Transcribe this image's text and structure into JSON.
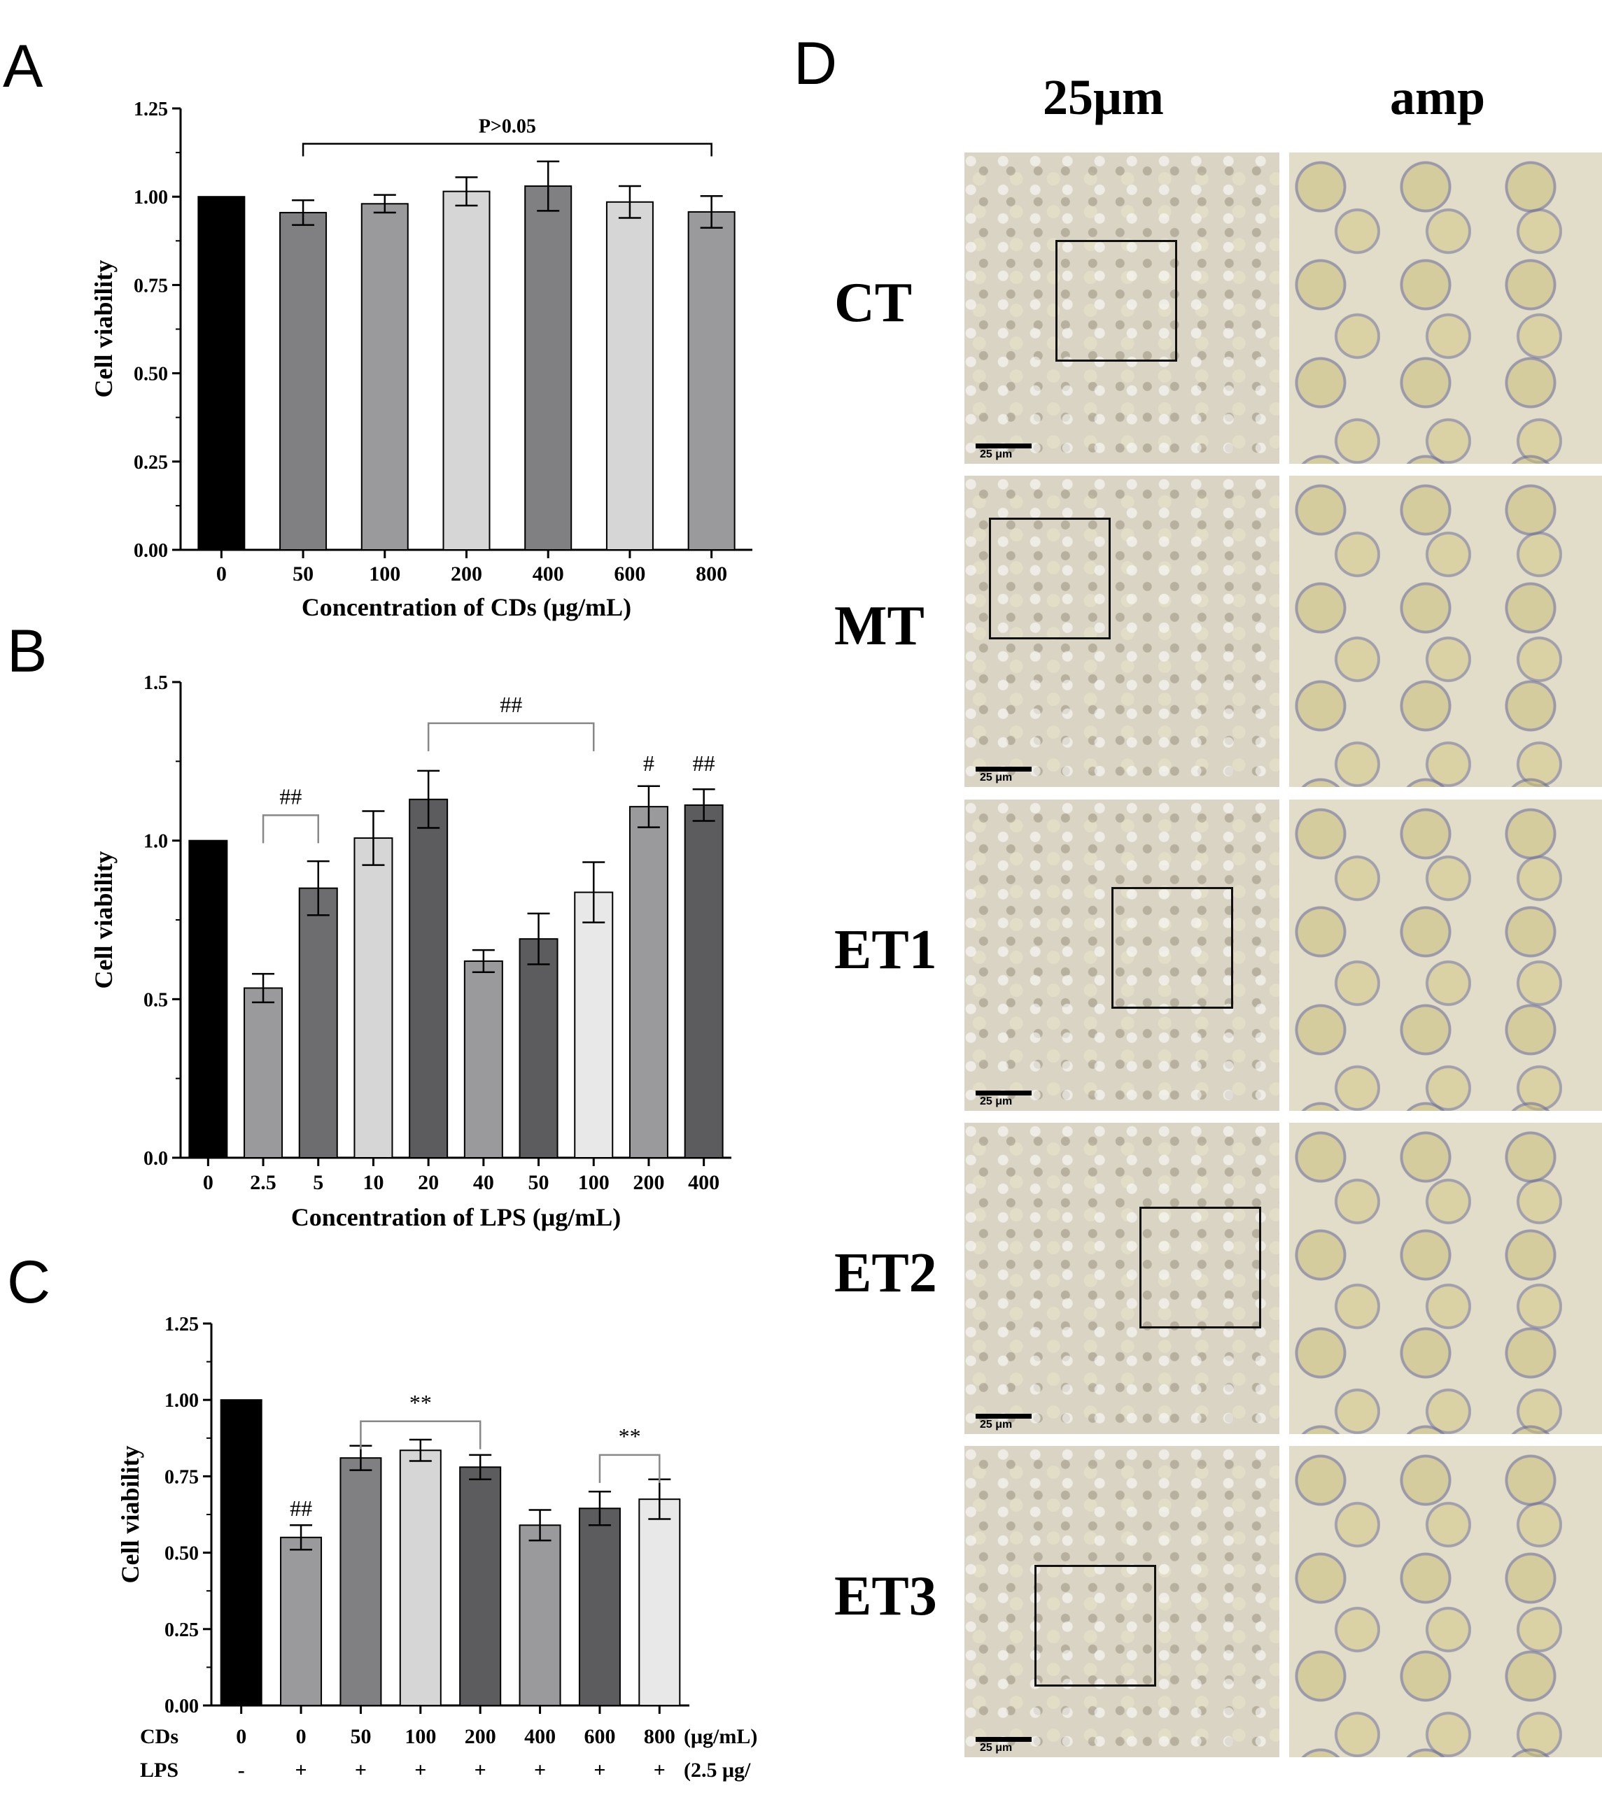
{
  "panel_letters": {
    "a": "A",
    "b": "B",
    "c": "C",
    "d": "D"
  },
  "colors": {
    "black": "#000000",
    "dark": "#5c5c5e",
    "mid": "#808082",
    "light": "#d6d6d6",
    "lighter": "#e8e8e8",
    "gray": "#9a9a9c"
  },
  "chart_data": [
    {
      "type": "bar",
      "panel": "A",
      "ylabel": "Cell viability",
      "xlabel": "Concentration of CDs (μg/mL)",
      "ylim": [
        0,
        1.25
      ],
      "yticks": [
        "0.00",
        "0.25",
        "0.50",
        "0.75",
        "1.00",
        "1.25"
      ],
      "categories": [
        "0",
        "50",
        "100",
        "200",
        "400",
        "600",
        "800"
      ],
      "values": [
        1.0,
        0.955,
        0.98,
        1.015,
        1.03,
        0.985,
        0.957
      ],
      "errors": [
        0,
        0.035,
        0.025,
        0.04,
        0.07,
        0.045,
        0.045
      ],
      "bar_colors": [
        "#000000",
        "#808082",
        "#9a9a9c",
        "#d6d6d6",
        "#808082",
        "#d6d6d6",
        "#9a9a9c"
      ],
      "annotations": [
        {
          "text": "P>0.05",
          "from": 1,
          "to": 6,
          "y": 1.15
        }
      ]
    },
    {
      "type": "bar",
      "panel": "B",
      "ylabel": "Cell viability",
      "xlabel": "Concentration of LPS (μg/mL)",
      "ylim": [
        0,
        1.5
      ],
      "yticks": [
        "0.0",
        "0.5",
        "1.0",
        "1.5"
      ],
      "categories": [
        "0",
        "2.5",
        "5",
        "10",
        "20",
        "40",
        "50",
        "100",
        "200",
        "400"
      ],
      "values": [
        1.0,
        0.535,
        0.85,
        1.008,
        1.13,
        0.62,
        0.69,
        0.837,
        1.107,
        1.112
      ],
      "errors": [
        0,
        0.045,
        0.085,
        0.085,
        0.09,
        0.035,
        0.08,
        0.095,
        0.065,
        0.05
      ],
      "bar_colors": [
        "#000000",
        "#9a9a9c",
        "#6d6d70",
        "#d6d6d6",
        "#5c5c5e",
        "#9a9a9c",
        "#5c5c5e",
        "#e8e8e8",
        "#9a9a9c",
        "#5c5c5e"
      ],
      "annotations": [
        {
          "text": "##",
          "from": 1,
          "to": 2,
          "y": 1.08
        },
        {
          "text": "##",
          "from": 4,
          "to": 7,
          "y": 1.37
        },
        {
          "text": "#",
          "at": 8,
          "y": 1.22
        },
        {
          "text": "##",
          "at": 9,
          "y": 1.22
        }
      ]
    },
    {
      "type": "bar",
      "panel": "C",
      "ylabel": "Cell viability",
      "ylim": [
        0,
        1.25
      ],
      "yticks": [
        "0.00",
        "0.25",
        "0.50",
        "0.75",
        "1.00",
        "1.25"
      ],
      "categories": [
        "0",
        "0",
        "50",
        "100",
        "200",
        "400",
        "600",
        "800"
      ],
      "values": [
        1.0,
        0.55,
        0.81,
        0.835,
        0.78,
        0.59,
        0.645,
        0.675
      ],
      "errors": [
        0,
        0.04,
        0.04,
        0.035,
        0.04,
        0.05,
        0.055,
        0.065
      ],
      "bar_colors": [
        "#000000",
        "#9a9a9c",
        "#808082",
        "#d6d6d6",
        "#5c5c5e",
        "#9a9a9c",
        "#5c5c5e",
        "#e8e8e8"
      ],
      "row_cds_label": "CDs",
      "row_cds_unit": "(μg/mL)",
      "row_lps_label": "LPS",
      "row_lps_values": [
        "-",
        "+",
        "+",
        "+",
        "+",
        "+",
        "+",
        "+"
      ],
      "row_lps_unit": "(2.5 μg/",
      "annotations": [
        {
          "text": "##",
          "at": 1,
          "y": 0.62
        },
        {
          "text": "**",
          "from": 2,
          "to": 4,
          "y": 0.93
        },
        {
          "text": "**",
          "from": 6,
          "to": 7,
          "y": 0.82
        }
      ]
    }
  ],
  "micrographs": {
    "col_titles": [
      "25μm",
      "amp"
    ],
    "rows": [
      "CT",
      "MT",
      "ET1",
      "ET2",
      "ET3"
    ],
    "scale_label": "25 μm"
  }
}
